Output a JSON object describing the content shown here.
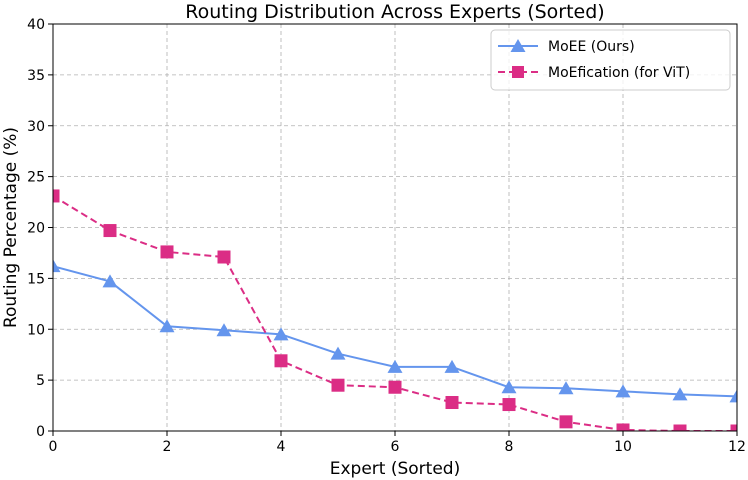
{
  "chart_data": {
    "type": "line",
    "title": "Routing Distribution Across Experts (Sorted)",
    "xlabel": "Expert (Sorted)",
    "ylabel": "Routing Percentage (%)",
    "xlim": [
      0,
      12
    ],
    "ylim": [
      0,
      40
    ],
    "xticks": [
      0,
      2,
      4,
      6,
      8,
      10,
      12
    ],
    "yticks": [
      0,
      5,
      10,
      15,
      20,
      25,
      30,
      35,
      40
    ],
    "grid": true,
    "legend_position": "top-right",
    "series": [
      {
        "name": "MoEE (Ours)",
        "color": "#6495ED",
        "marker": "triangle",
        "linestyle": "solid",
        "x": [
          0,
          1,
          2,
          3,
          4,
          5,
          6,
          7,
          8,
          9,
          10,
          11,
          12
        ],
        "values": [
          16.2,
          14.7,
          10.3,
          9.9,
          9.5,
          7.6,
          6.3,
          6.3,
          4.3,
          4.2,
          3.9,
          3.6,
          3.4
        ]
      },
      {
        "name": "MoEfication (for ViT)",
        "color": "#DB2D85",
        "marker": "square",
        "linestyle": "dashed",
        "x": [
          0,
          1,
          2,
          3,
          4,
          5,
          6,
          7,
          8,
          9,
          10,
          11,
          12
        ],
        "values": [
          23.1,
          19.7,
          17.6,
          17.1,
          6.9,
          4.5,
          4.3,
          2.8,
          2.6,
          0.9,
          0.1,
          0.0,
          0.0
        ]
      }
    ]
  }
}
